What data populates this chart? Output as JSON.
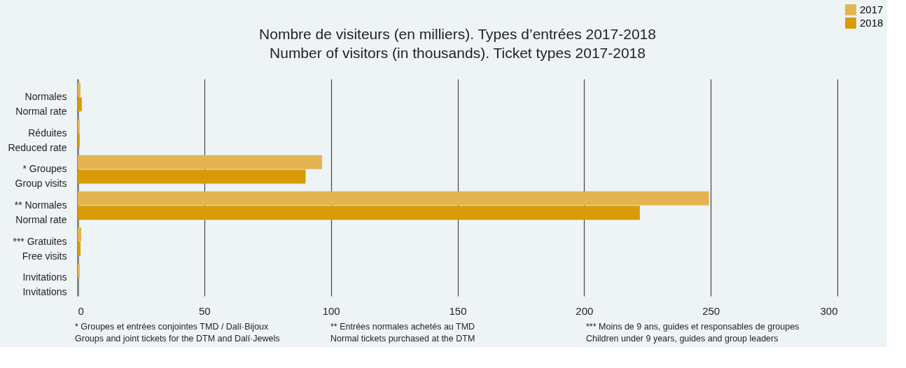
{
  "chart_data": {
    "type": "bar",
    "orientation": "horizontal",
    "title": [
      "Nombre de visiteurs (en milliers). Types d’entrées 2017-2018",
      "Number of visitors (in thousands). Ticket types 2017-2018"
    ],
    "categories": [
      "Normales\nNormal rate",
      "Réduites\nReduced rate",
      "* Groupes\nGroup visits",
      "** Normales\nNormal rate",
      "*** Gratuites\nFree visits",
      "Invitations\nInvitations"
    ],
    "series": [
      {
        "name": "2017",
        "color": "#e3b44f",
        "values": [
          1.1,
          0.8,
          96.5,
          249.3,
          1.4,
          0.8
        ]
      },
      {
        "name": "2018",
        "color": "#d89a06",
        "values": [
          1.6,
          0.8,
          90,
          222,
          1.1,
          0
        ]
      }
    ],
    "xlim": [
      0,
      300
    ],
    "xticks": [
      0,
      50,
      100,
      150,
      200,
      250,
      300
    ],
    "grid": "x",
    "legend": "top right",
    "annotations": [
      "* Groupes et entrées conjointes TMD / Dalí·Bijoux\nGroups and joint tickets for the DTM and Dalí·Jewels",
      "** Entrées normales achetés au TMD\nNormal tickets purchased at the DTM",
      "*** Moins de 9 ans, guides et responsables de groupes\nChildren under 9 years, guides and group leaders"
    ]
  }
}
